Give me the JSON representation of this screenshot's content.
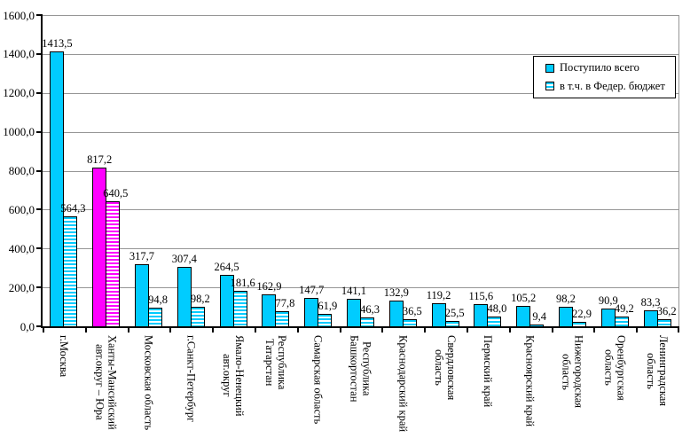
{
  "chart_data": {
    "type": "bar",
    "title": "",
    "xlabel": "",
    "ylabel": "",
    "ylim": [
      0,
      1600
    ],
    "ytick_step": 200,
    "ytick_labels": [
      "0,0",
      "200,0",
      "400,0",
      "600,0",
      "800,0",
      "1000,0",
      "1200,0",
      "1400,0",
      "1600,0"
    ],
    "grid": "horizontal",
    "legend_position": "top-right",
    "categories": [
      "г.Москва",
      "Ханты-Мансийский\nавт.округ – Юра",
      "Московская область",
      "г.Санкт-Петербург",
      "Ямало-Ненецкий\nавт.округ",
      "Республика\nТатарстан",
      "Самарская область",
      "Республика\nБашкортостан",
      "Краснодарский край",
      "Свердловская\nобласть",
      "Пермский край",
      "Красноярский край",
      "Нижегородская\nобласть",
      "Оренбургская\nобласть",
      "Ленинградская\nобласть"
    ],
    "highlight_index": 1,
    "series": [
      {
        "name": "Поступило всего",
        "style": "solid",
        "values": [
          "1413,5",
          "817,2",
          "317,7",
          "307,4",
          "264,5",
          "162,9",
          "147,7",
          "141,1",
          "132,9",
          "119,2",
          "115,6",
          "105,2",
          "98,2",
          "90,9",
          "83,3"
        ]
      },
      {
        "name": "в т.ч. в Федер. бюджет",
        "style": "striped",
        "values": [
          "564,3",
          "640,5",
          "94,8",
          "98,2",
          "181,6",
          "77,8",
          "61,9",
          "46,3",
          "36,5",
          "25,5",
          "48,0",
          "9,4",
          "22,9",
          "49,2",
          "36,2"
        ]
      }
    ],
    "colors": {
      "bar_fill": "#00CCFF",
      "highlight_fill": "#FF00FF",
      "stripe_gap": "#FFFFFF",
      "gridline": "#969696",
      "axis": "#000000",
      "background": "#FFFFFF",
      "text": "#000000"
    }
  }
}
